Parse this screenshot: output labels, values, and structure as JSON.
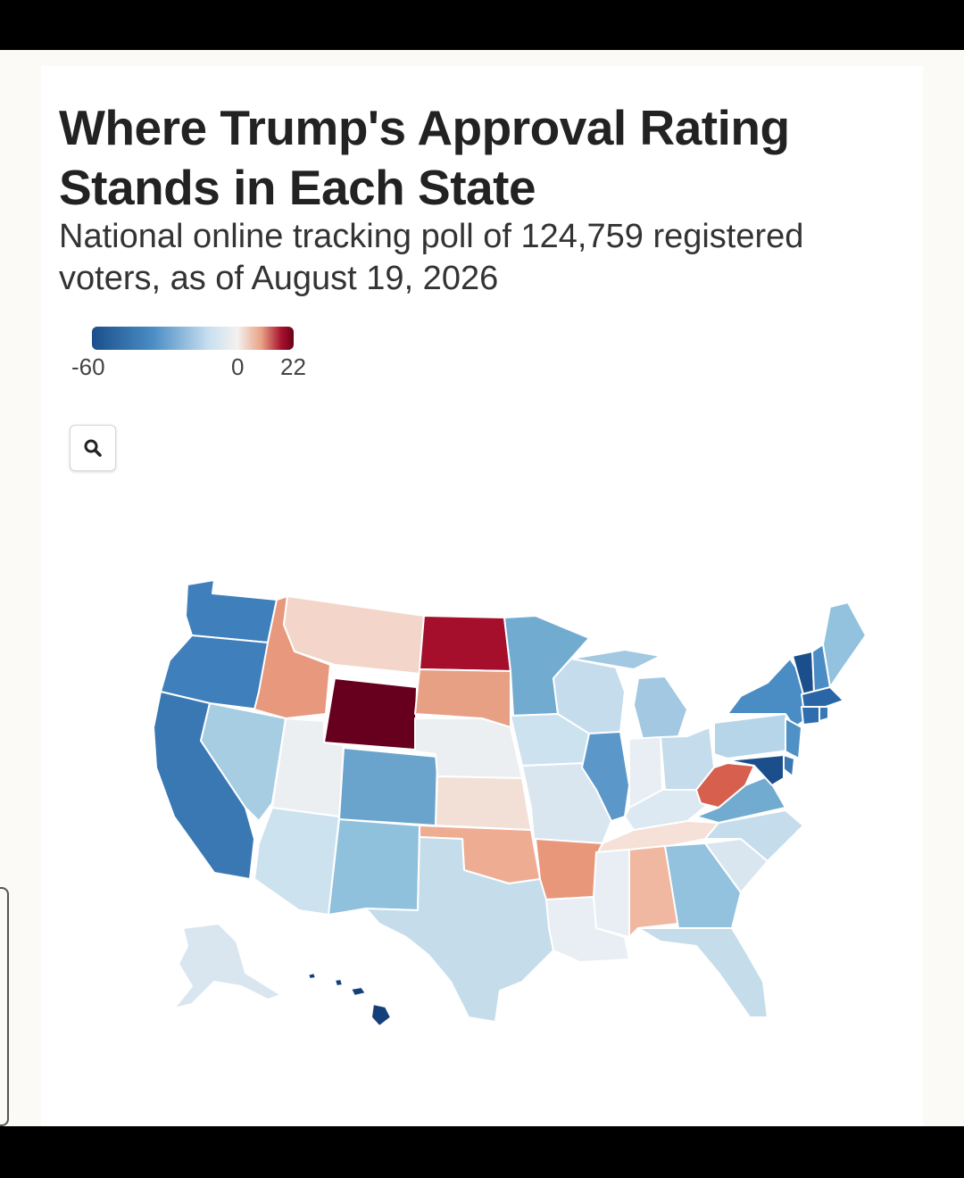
{
  "header": {
    "title": "Where Trump's Approval Rating Stands in Each State",
    "subtitle": "National online tracking poll of 124,759 registered voters, as of August 19, 2026"
  },
  "legend": {
    "min_label": "-60",
    "mid_label": "0",
    "max_label": "22",
    "scale_min": -60,
    "scale_mid": 0,
    "scale_max": 22,
    "colors": [
      "#1a4f8b",
      "#4a8cc4",
      "#c8dff0",
      "#f4f1ef",
      "#e8a285",
      "#a8112d",
      "#6b0019"
    ]
  },
  "controls": {
    "zoom_icon": "search-icon"
  },
  "map": {
    "type": "choropleth",
    "region": "United States",
    "states": {
      "WA": {
        "color": "#3f7fbb"
      },
      "OR": {
        "color": "#3f7fbb"
      },
      "CA": {
        "color": "#3a78b4"
      },
      "NV": {
        "color": "#a7cde3"
      },
      "ID": {
        "color": "#e8987d"
      },
      "MT": {
        "color": "#f3d6c9"
      },
      "WY": {
        "color": "#67001f"
      },
      "UT": {
        "color": "#eceff1"
      },
      "AZ": {
        "color": "#cde2ef"
      },
      "CO": {
        "color": "#6aa4cc"
      },
      "NM": {
        "color": "#8fc0dc"
      },
      "ND": {
        "color": "#a50f2c"
      },
      "SD": {
        "color": "#e8a085"
      },
      "NE": {
        "color": "#eceff1"
      },
      "KS": {
        "color": "#f2dfd6"
      },
      "OK": {
        "color": "#eeac93"
      },
      "TX": {
        "color": "#c5ddeb"
      },
      "MN": {
        "color": "#72abd0"
      },
      "IA": {
        "color": "#cde2ef"
      },
      "MO": {
        "color": "#d9e6f0"
      },
      "AR": {
        "color": "#e9977b"
      },
      "LA": {
        "color": "#e8eef3"
      },
      "WI": {
        "color": "#c5dcec"
      },
      "IL": {
        "color": "#5b97c8"
      },
      "MI": {
        "color": "#a2c8e2"
      },
      "IN": {
        "color": "#e8eef3"
      },
      "OH": {
        "color": "#c5dcec"
      },
      "KY": {
        "color": "#dce9f2"
      },
      "TN": {
        "color": "#f5e1d8"
      },
      "MS": {
        "color": "#e8eef3"
      },
      "AL": {
        "color": "#f0b7a1"
      },
      "GA": {
        "color": "#93c2de"
      },
      "FL": {
        "color": "#c5ddeb"
      },
      "SC": {
        "color": "#d9e6f0"
      },
      "NC": {
        "color": "#c5dcec"
      },
      "VA": {
        "color": "#72abd0"
      },
      "WV": {
        "color": "#d6604d"
      },
      "PA": {
        "color": "#b7d5e8"
      },
      "NY": {
        "color": "#4a8cc4"
      },
      "VT": {
        "color": "#1a4f8b"
      },
      "NH": {
        "color": "#4a8cc4"
      },
      "ME": {
        "color": "#93c2de"
      },
      "MA": {
        "color": "#2a66a6"
      },
      "CT": {
        "color": "#2f6eae"
      },
      "RI": {
        "color": "#3a78b4"
      },
      "NJ": {
        "color": "#4f90c5"
      },
      "DE": {
        "color": "#3a78b4"
      },
      "MD": {
        "color": "#1a4f8b"
      },
      "AK": {
        "color": "#d9e6f0"
      },
      "HI": {
        "color": "#13407a"
      }
    }
  }
}
